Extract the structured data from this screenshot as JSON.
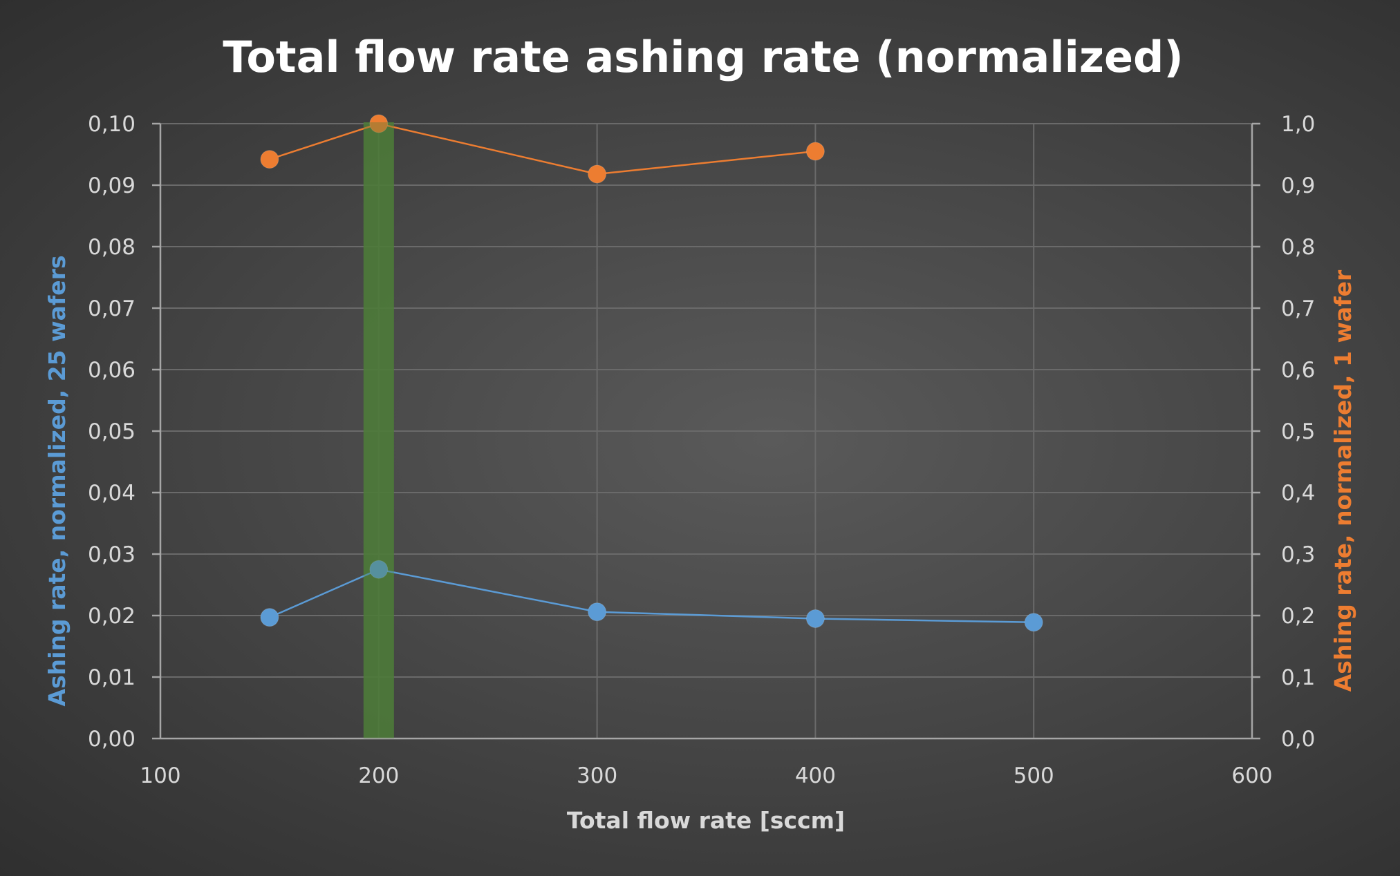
{
  "chart_data": {
    "type": "scatter",
    "title": "Total flow rate ashing rate (normalized)",
    "xlabel": "Total flow rate [sccm]",
    "ylabel_left": "Ashing rate, normalized, 25 wafers",
    "ylabel_right": "Ashing rate, normalized, 1 wafer",
    "xlim": [
      100,
      600
    ],
    "x_ticks": [
      "100",
      "200",
      "300",
      "400",
      "500",
      "600"
    ],
    "ylim_left": [
      0,
      0.1
    ],
    "y_ticks_left": [
      "0,00",
      "0,01",
      "0,02",
      "0,03",
      "0,04",
      "0,05",
      "0,06",
      "0,07",
      "0,08",
      "0,09",
      "0,10"
    ],
    "ylim_right": [
      0,
      1.0
    ],
    "y_ticks_right": [
      "0,0",
      "0,1",
      "0,2",
      "0,3",
      "0,4",
      "0,5",
      "0,6",
      "0,7",
      "0,8",
      "0,9",
      "1,0"
    ],
    "grid": true,
    "highlight_band": {
      "x_center": 200,
      "color": "#4e7a3a"
    },
    "series": [
      {
        "axis": "left",
        "color": "#5b9bd5",
        "points": [
          {
            "x": 150,
            "y": 0.0197
          },
          {
            "x": 200,
            "y": 0.0275
          },
          {
            "x": 300,
            "y": 0.0206
          },
          {
            "x": 400,
            "y": 0.0195
          },
          {
            "x": 500,
            "y": 0.0189
          }
        ]
      },
      {
        "axis": "right",
        "color": "#ed7d31",
        "points": [
          {
            "x": 150,
            "y": 0.942
          },
          {
            "x": 200,
            "y": 1.0
          },
          {
            "x": 300,
            "y": 0.918
          },
          {
            "x": 400,
            "y": 0.955
          }
        ]
      }
    ]
  }
}
